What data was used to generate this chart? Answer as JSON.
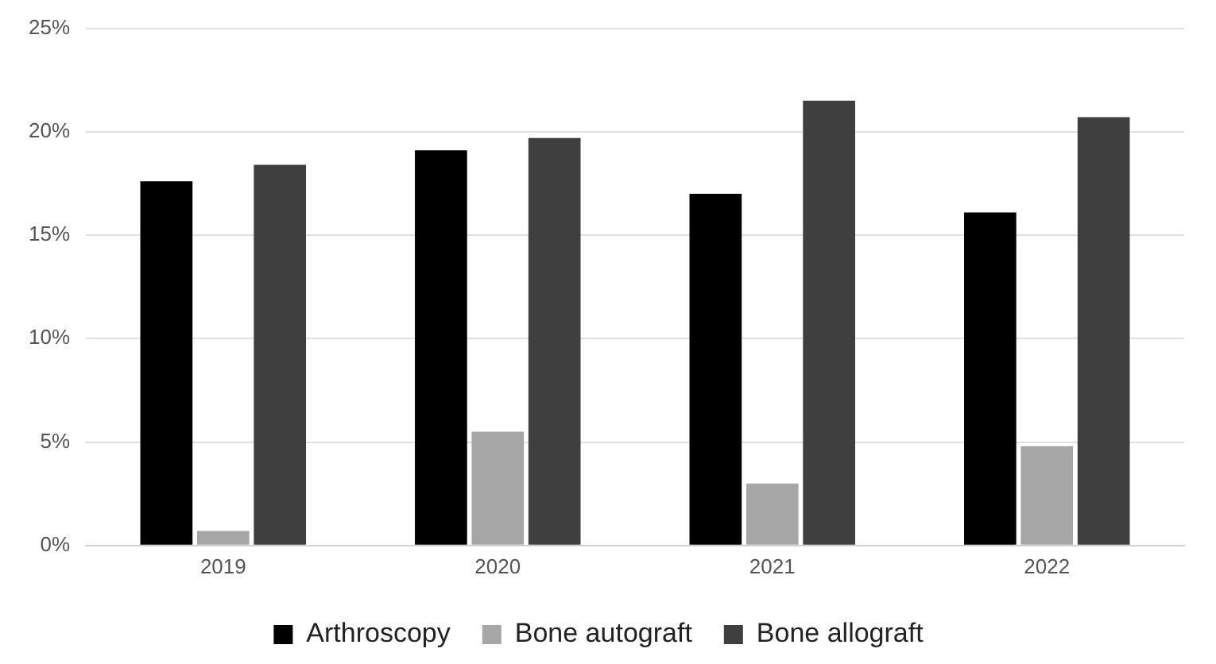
{
  "chart_data": {
    "type": "bar",
    "categories": [
      "2019",
      "2020",
      "2021",
      "2022"
    ],
    "series": [
      {
        "name": "Arthroscopy",
        "color": "#000000",
        "values": [
          17.6,
          19.1,
          17.0,
          16.1
        ]
      },
      {
        "name": "Bone autograft",
        "color": "#a6a6a6",
        "values": [
          0.7,
          5.5,
          3.0,
          4.8
        ]
      },
      {
        "name": "Bone allograft",
        "color": "#3f3f3f",
        "values": [
          18.4,
          19.7,
          21.5,
          20.7
        ]
      }
    ],
    "ylim": [
      0,
      25
    ],
    "yticks": [
      {
        "value": 0,
        "label": "0%"
      },
      {
        "value": 5,
        "label": "5%"
      },
      {
        "value": 10,
        "label": "10%"
      },
      {
        "value": 15,
        "label": "15%"
      },
      {
        "value": 20,
        "label": "20%"
      },
      {
        "value": 25,
        "label": "25%"
      }
    ],
    "grid": "y",
    "legend": "bottom"
  }
}
